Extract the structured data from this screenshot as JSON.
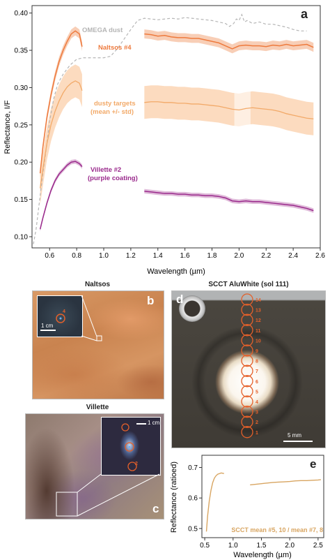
{
  "figure": {
    "panel_a_letter": "a",
    "panel_b_letter": "b",
    "panel_c_letter": "c",
    "panel_d_letter": "d",
    "panel_e_letter": "e",
    "naltsos_title": "Naltsos",
    "villette_title": "Villette",
    "scct_title": "SCCT AluWhite (sol 111)",
    "scale_1cm_b": "1 cm",
    "scale_1cm_c": "1 cm",
    "scale_5mm": "5 mm",
    "inset_b_spot_label": "4",
    "inset_c_spot_label": "2",
    "target_numbers": [
      "14",
      "13",
      "12",
      "11",
      "10",
      "9",
      "8",
      "7",
      "6",
      "5",
      "4",
      "3",
      "2",
      "1"
    ]
  },
  "colors": {
    "omega": "#b5b5b5",
    "naltsos": "#ee7a3d",
    "naltsos_band": "#f6c2a4",
    "dusty": "#f2a968",
    "dusty_band": "#fbd5b4",
    "villette": "#9a2a8c",
    "villette_band": "#d7a9cf",
    "scct": "#d8a561",
    "target_circle": "#e5602a"
  },
  "chart_data": [
    {
      "type": "line",
      "panel": "a",
      "xlabel": "Wavelength (µm)",
      "ylabel": "Reflectance, I/F",
      "xlim": [
        0.47,
        2.6
      ],
      "ylim": [
        0.085,
        0.41
      ],
      "xticks": [
        "0.6",
        "0.8",
        "1.0",
        "1.2",
        "1.4",
        "1.6",
        "1.8",
        "2.0",
        "2.2",
        "2.4",
        "2.6"
      ],
      "yticks": [
        "0.10",
        "0.15",
        "0.20",
        "0.25",
        "0.30",
        "0.35",
        "0.40"
      ],
      "series": [
        {
          "name": "OMEGA dust",
          "style": "dashed",
          "x": [
            0.48,
            0.5,
            0.52,
            0.55,
            0.58,
            0.6,
            0.63,
            0.66,
            0.7,
            0.75,
            0.8,
            0.85,
            1.0,
            1.05,
            1.1,
            1.15,
            1.2,
            1.25,
            1.3,
            1.35,
            1.4,
            1.45,
            1.5,
            1.55,
            1.6,
            1.65,
            1.7,
            1.75,
            1.8,
            1.85,
            1.9,
            1.93,
            1.96,
            1.98,
            2.0,
            2.02,
            2.04,
            2.06,
            2.1,
            2.15,
            2.2,
            2.25,
            2.3,
            2.35,
            2.4,
            2.45,
            2.5
          ],
          "y": [
            0.09,
            0.11,
            0.14,
            0.185,
            0.225,
            0.255,
            0.285,
            0.305,
            0.318,
            0.33,
            0.338,
            0.34,
            0.34,
            0.342,
            0.352,
            0.365,
            0.378,
            0.39,
            0.393,
            0.392,
            0.391,
            0.392,
            0.393,
            0.392,
            0.394,
            0.393,
            0.392,
            0.391,
            0.39,
            0.388,
            0.386,
            0.382,
            0.386,
            0.392,
            0.39,
            0.398,
            0.388,
            0.39,
            0.386,
            0.388,
            0.385,
            0.385,
            0.383,
            0.381,
            0.378,
            0.376,
            0.376
          ]
        },
        {
          "name": "Naltsos #4",
          "x": [
            0.53,
            0.55,
            0.58,
            0.61,
            0.64,
            0.67,
            0.7,
            0.73,
            0.76,
            0.79,
            0.82,
            0.84,
            1.3,
            1.35,
            1.4,
            1.45,
            1.5,
            1.55,
            1.6,
            1.65,
            1.7,
            1.75,
            1.8,
            1.85,
            1.9,
            1.95,
            2.0,
            2.05,
            2.1,
            2.15,
            2.2,
            2.25,
            2.3,
            2.35,
            2.4,
            2.45,
            2.5,
            2.55
          ],
          "y": [
            0.185,
            0.22,
            0.26,
            0.29,
            0.315,
            0.335,
            0.35,
            0.362,
            0.372,
            0.376,
            0.372,
            0.355,
            0.372,
            0.371,
            0.369,
            0.37,
            0.368,
            0.367,
            0.367,
            0.366,
            0.366,
            0.364,
            0.362,
            0.36,
            0.356,
            0.352,
            0.356,
            0.357,
            0.356,
            0.356,
            0.355,
            0.357,
            0.356,
            0.358,
            0.356,
            0.357,
            0.358,
            0.354
          ]
        },
        {
          "name": "dusty targets (mean +/- std)",
          "x": [
            0.53,
            0.55,
            0.58,
            0.61,
            0.64,
            0.67,
            0.7,
            0.73,
            0.76,
            0.79,
            0.82,
            0.84,
            1.3,
            1.35,
            1.4,
            1.45,
            1.5,
            1.55,
            1.6,
            1.65,
            1.7,
            1.75,
            1.8,
            1.85,
            1.9,
            1.95,
            2.0,
            2.05,
            2.1,
            2.15,
            2.2,
            2.25,
            2.3,
            2.35,
            2.4,
            2.45,
            2.5,
            2.55
          ],
          "y": [
            0.165,
            0.19,
            0.225,
            0.25,
            0.268,
            0.282,
            0.293,
            0.301,
            0.306,
            0.309,
            0.306,
            0.296,
            0.28,
            0.281,
            0.281,
            0.28,
            0.28,
            0.279,
            0.279,
            0.278,
            0.278,
            0.277,
            0.276,
            0.275,
            0.273,
            0.271,
            0.27,
            0.272,
            0.273,
            0.272,
            0.271,
            0.27,
            0.268,
            0.265,
            0.263,
            0.261,
            0.259,
            0.258
          ],
          "std": 0.022
        },
        {
          "name": "Villette #2 (purple coating)",
          "x": [
            0.53,
            0.55,
            0.58,
            0.61,
            0.64,
            0.67,
            0.7,
            0.73,
            0.76,
            0.79,
            0.82,
            0.84,
            1.3,
            1.35,
            1.4,
            1.45,
            1.5,
            1.55,
            1.6,
            1.65,
            1.7,
            1.75,
            1.8,
            1.85,
            1.9,
            1.95,
            2.0,
            2.05,
            2.1,
            2.15,
            2.2,
            2.25,
            2.3,
            2.35,
            2.4,
            2.45,
            2.5,
            2.55
          ],
          "y": [
            0.11,
            0.125,
            0.145,
            0.162,
            0.175,
            0.184,
            0.19,
            0.196,
            0.2,
            0.201,
            0.198,
            0.194,
            0.161,
            0.16,
            0.159,
            0.158,
            0.158,
            0.157,
            0.157,
            0.156,
            0.156,
            0.155,
            0.155,
            0.154,
            0.152,
            0.148,
            0.147,
            0.148,
            0.147,
            0.147,
            0.146,
            0.145,
            0.144,
            0.143,
            0.142,
            0.14,
            0.138,
            0.135
          ]
        }
      ],
      "annotations": [
        "OMEGA dust",
        "Naltsos #4",
        "dusty targets",
        "(mean +/- std)",
        "Villette #2",
        "(purple coating)"
      ]
    },
    {
      "type": "line",
      "panel": "e",
      "xlabel": "Wavelength (µm)",
      "ylabel": "Reflectance (ratioed)",
      "xlim": [
        0.45,
        2.6
      ],
      "ylim": [
        0.47,
        0.74
      ],
      "xticks": [
        "0.5",
        "1.0",
        "1.5",
        "2.0",
        "2.5"
      ],
      "yticks": [
        "0.5",
        "0.6",
        "0.7"
      ],
      "series": [
        {
          "name": "SCCT mean #5, 10 / mean #7, 8",
          "x": [
            0.53,
            0.55,
            0.58,
            0.61,
            0.64,
            0.67,
            0.7,
            0.73,
            0.76,
            0.79,
            0.82,
            0.84,
            1.3,
            1.4,
            1.5,
            1.6,
            1.7,
            1.8,
            1.9,
            2.0,
            2.1,
            2.2,
            2.3,
            2.4,
            2.5,
            2.55
          ],
          "y": [
            0.49,
            0.54,
            0.59,
            0.625,
            0.65,
            0.665,
            0.673,
            0.678,
            0.68,
            0.682,
            0.681,
            0.68,
            0.643,
            0.645,
            0.647,
            0.649,
            0.651,
            0.652,
            0.653,
            0.654,
            0.656,
            0.657,
            0.657,
            0.658,
            0.659,
            0.66
          ]
        }
      ],
      "annotations": [
        "SCCT mean #5, 10 / mean #7, 8"
      ]
    }
  ]
}
